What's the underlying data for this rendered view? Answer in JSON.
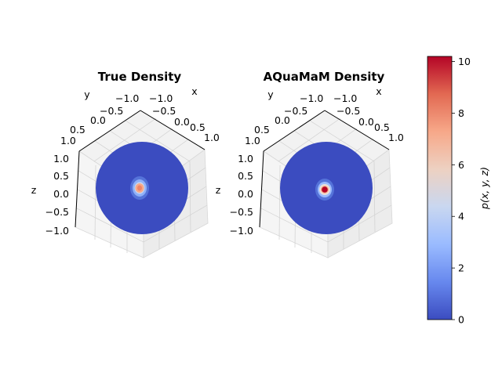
{
  "chart_data": [
    {
      "type": "3d-sphere-density",
      "title": "True Density",
      "xlabel": "x",
      "ylabel": "y",
      "zlabel": "z",
      "xlim": [
        -1.0,
        1.0
      ],
      "ylim": [
        -1.0,
        1.0
      ],
      "zlim": [
        -1.0,
        1.0
      ],
      "x_ticks": [
        "−1.0",
        "−0.5",
        "0.0",
        "0.5",
        "1.0"
      ],
      "y_ticks": [
        "−1.0",
        "−0.5",
        "0.0",
        "0.5",
        "1.0"
      ],
      "z_ticks": [
        "1.0",
        "0.5",
        "0.0",
        "−0.5",
        "−1.0"
      ],
      "background_density": 0.2,
      "peak_density": 7.5,
      "grid": true
    },
    {
      "type": "3d-sphere-density",
      "title": "AQuaMaM Density",
      "xlabel": "x",
      "ylabel": "y",
      "zlabel": "",
      "xlim": [
        -1.0,
        1.0
      ],
      "ylim": [
        -1.0,
        1.0
      ],
      "zlim": [
        -1.0,
        1.0
      ],
      "x_ticks": [
        "−1.0",
        "−0.5",
        "0.0",
        "0.5",
        "1.0"
      ],
      "y_ticks": [
        "−1.0",
        "−0.5",
        "0.0",
        "0.5",
        "1.0"
      ],
      "z_ticks": [
        "1.0",
        "0.5",
        "0.0",
        "−0.5",
        "−1.0"
      ],
      "background_density": 0.2,
      "peak_density": 10.2,
      "grid": true
    },
    {
      "type": "colorbar",
      "label": "p(x, y, z)",
      "colormap": "coolwarm",
      "range": [
        0,
        10.2
      ],
      "ticks": [
        "0",
        "2",
        "4",
        "6",
        "8",
        "10"
      ],
      "tick_values": [
        0,
        2,
        4,
        6,
        8,
        10
      ],
      "colors": [
        "#3b4cc0",
        "#6788ee",
        "#9abbff",
        "#c9d7f0",
        "#edd1c2",
        "#f7a889",
        "#e26952",
        "#b40426"
      ]
    }
  ]
}
